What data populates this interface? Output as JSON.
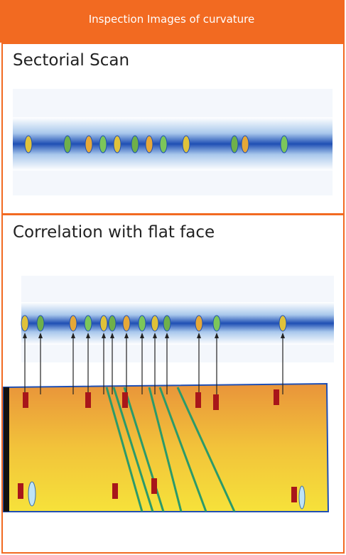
{
  "header": {
    "title": "Inspection Images of curvature"
  },
  "rows": [
    {
      "label": "Sectorial Scan"
    },
    {
      "label": "Correlation with flat face"
    }
  ]
}
